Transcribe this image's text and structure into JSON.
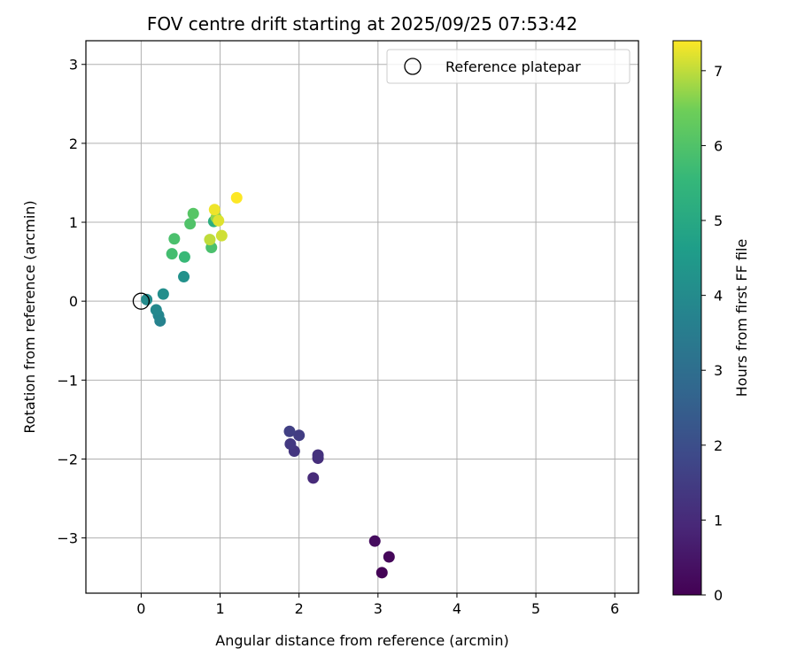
{
  "chart_data": {
    "type": "scatter",
    "title": "FOV centre drift starting at 2025/09/25 07:53:42",
    "xlabel": "Angular distance from reference (arcmin)",
    "ylabel": "Rotation from reference (arcmin)",
    "xlim": [
      -0.7,
      6.3
    ],
    "ylim": [
      -3.7,
      3.3
    ],
    "xticks": [
      0,
      1,
      2,
      3,
      4,
      5,
      6
    ],
    "xtick_labels": [
      "0",
      "1",
      "2",
      "3",
      "4",
      "5",
      "6"
    ],
    "yticks": [
      -3,
      -2,
      -1,
      0,
      1,
      2,
      3
    ],
    "ytick_labels": [
      "−3",
      "−2",
      "−1",
      "0",
      "1",
      "2",
      "3"
    ],
    "grid": true,
    "legend": {
      "position": "top-right",
      "entries": [
        "Reference platepar"
      ]
    },
    "reference_point": {
      "x": 0,
      "y": 0,
      "label": "Reference platepar"
    },
    "colorbar": {
      "label": "Hours from first FF file",
      "range": [
        0,
        7.4
      ],
      "ticks": [
        0,
        1,
        2,
        3,
        4,
        5,
        6,
        7
      ],
      "tick_labels": [
        "0",
        "1",
        "2",
        "3",
        "4",
        "5",
        "6",
        "7"
      ],
      "colormap": "viridis"
    },
    "points": [
      {
        "x": 3.05,
        "y": -3.44,
        "t": 0.05
      },
      {
        "x": 3.14,
        "y": -3.24,
        "t": 0.15
      },
      {
        "x": 2.96,
        "y": -3.04,
        "t": 0.25
      },
      {
        "x": 2.18,
        "y": -2.24,
        "t": 1.0
      },
      {
        "x": 2.24,
        "y": -1.99,
        "t": 1.1
      },
      {
        "x": 2.24,
        "y": -1.95,
        "t": 1.2
      },
      {
        "x": 1.94,
        "y": -1.9,
        "t": 1.3
      },
      {
        "x": 1.89,
        "y": -1.81,
        "t": 1.4
      },
      {
        "x": 2.0,
        "y": -1.7,
        "t": 1.5
      },
      {
        "x": 1.88,
        "y": -1.65,
        "t": 1.6
      },
      {
        "x": 0.24,
        "y": -0.25,
        "t": 3.7
      },
      {
        "x": 0.22,
        "y": -0.18,
        "t": 3.8
      },
      {
        "x": 0.19,
        "y": -0.11,
        "t": 3.9
      },
      {
        "x": 0.07,
        "y": 0.02,
        "t": 4.0
      },
      {
        "x": 0.28,
        "y": 0.09,
        "t": 4.1
      },
      {
        "x": 0.54,
        "y": 0.31,
        "t": 4.2
      },
      {
        "x": 0.92,
        "y": 1.01,
        "t": 5.2
      },
      {
        "x": 0.55,
        "y": 0.56,
        "t": 5.6
      },
      {
        "x": 0.39,
        "y": 0.6,
        "t": 5.8
      },
      {
        "x": 0.42,
        "y": 0.79,
        "t": 5.9
      },
      {
        "x": 0.89,
        "y": 0.68,
        "t": 5.9
      },
      {
        "x": 0.62,
        "y": 0.98,
        "t": 6.0
      },
      {
        "x": 0.66,
        "y": 1.11,
        "t": 6.1
      },
      {
        "x": 0.95,
        "y": 1.06,
        "t": 6.7
      },
      {
        "x": 0.87,
        "y": 0.78,
        "t": 7.0
      },
      {
        "x": 1.02,
        "y": 0.83,
        "t": 7.1
      },
      {
        "x": 0.98,
        "y": 1.02,
        "t": 7.2
      },
      {
        "x": 0.93,
        "y": 1.16,
        "t": 7.3
      },
      {
        "x": 1.21,
        "y": 1.31,
        "t": 7.4
      }
    ]
  }
}
